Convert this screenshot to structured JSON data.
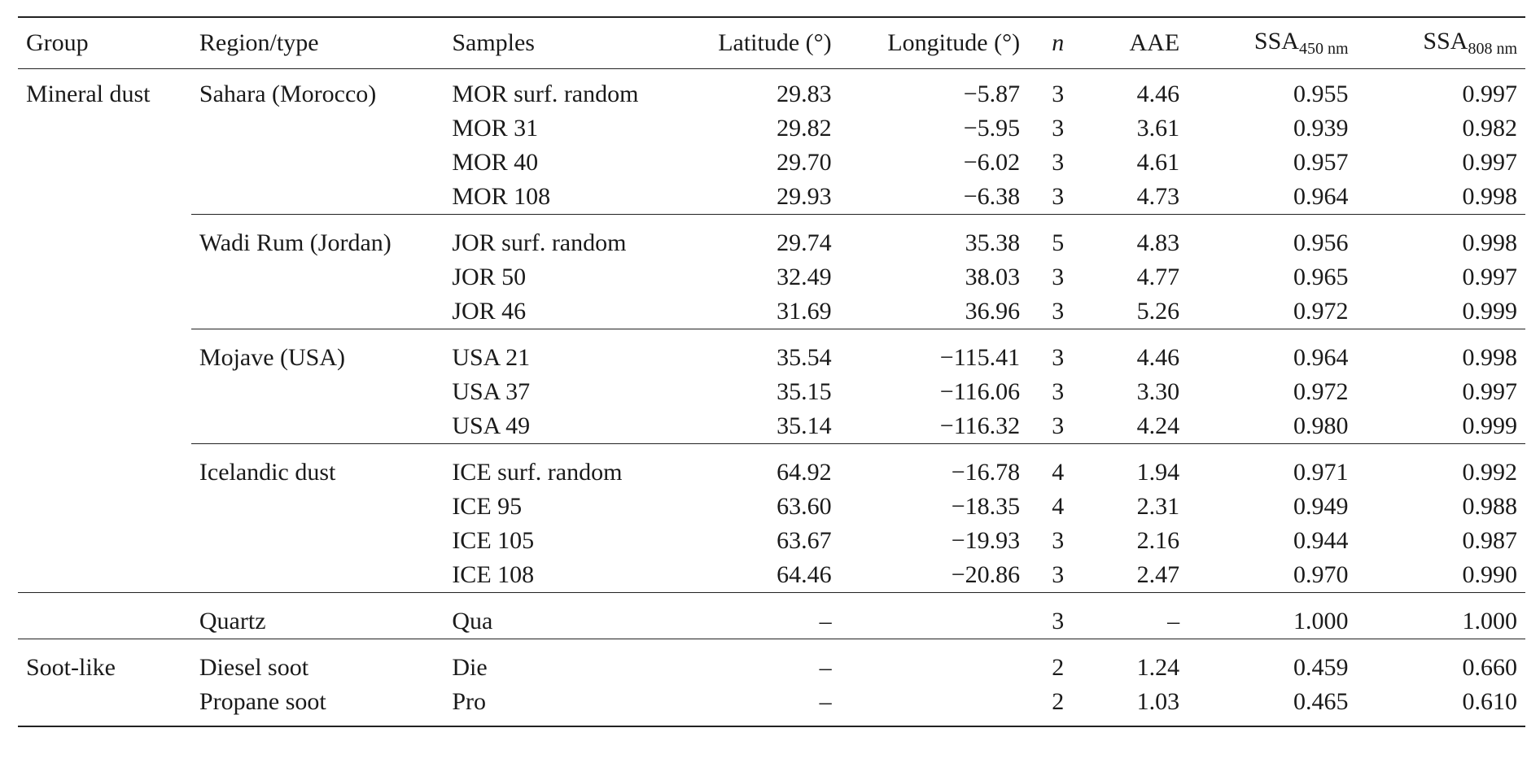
{
  "headers": {
    "group": "Group",
    "region": "Region/type",
    "samples": "Samples",
    "lat": "Latitude (°)",
    "lon": "Longitude (°)",
    "n": "n",
    "aae": "AAE",
    "ssa450_main": "SSA",
    "ssa450_sub": "450 nm",
    "ssa808_main": "SSA",
    "ssa808_sub": "808 nm"
  },
  "rows": [
    {
      "group": "Mineral dust",
      "region": "Sahara (Morocco)",
      "sample": "MOR surf. random",
      "lat": "29.83",
      "lon": "−5.87",
      "n": "3",
      "aae": "4.46",
      "ssa450": "0.955",
      "ssa808": "0.997"
    },
    {
      "group": "",
      "region": "",
      "sample": "MOR 31",
      "lat": "29.82",
      "lon": "−5.95",
      "n": "3",
      "aae": "3.61",
      "ssa450": "0.939",
      "ssa808": "0.982"
    },
    {
      "group": "",
      "region": "",
      "sample": "MOR 40",
      "lat": "29.70",
      "lon": "−6.02",
      "n": "3",
      "aae": "4.61",
      "ssa450": "0.957",
      "ssa808": "0.997"
    },
    {
      "group": "",
      "region": "",
      "sample": "MOR 108",
      "lat": "29.93",
      "lon": "−6.38",
      "n": "3",
      "aae": "4.73",
      "ssa450": "0.964",
      "ssa808": "0.998"
    },
    {
      "group": "",
      "region": "Wadi Rum (Jordan)",
      "sample": "JOR surf. random",
      "lat": "29.74",
      "lon": "35.38",
      "n": "5",
      "aae": "4.83",
      "ssa450": "0.956",
      "ssa808": "0.998"
    },
    {
      "group": "",
      "region": "",
      "sample": "JOR 50",
      "lat": "32.49",
      "lon": "38.03",
      "n": "3",
      "aae": "4.77",
      "ssa450": "0.965",
      "ssa808": "0.997"
    },
    {
      "group": "",
      "region": "",
      "sample": "JOR 46",
      "lat": "31.69",
      "lon": "36.96",
      "n": "3",
      "aae": "5.26",
      "ssa450": "0.972",
      "ssa808": "0.999"
    },
    {
      "group": "",
      "region": "Mojave (USA)",
      "sample": "USA 21",
      "lat": "35.54",
      "lon": "−115.41",
      "n": "3",
      "aae": "4.46",
      "ssa450": "0.964",
      "ssa808": "0.998"
    },
    {
      "group": "",
      "region": "",
      "sample": "USA 37",
      "lat": "35.15",
      "lon": "−116.06",
      "n": "3",
      "aae": "3.30",
      "ssa450": "0.972",
      "ssa808": "0.997"
    },
    {
      "group": "",
      "region": "",
      "sample": "USA 49",
      "lat": "35.14",
      "lon": "−116.32",
      "n": "3",
      "aae": "4.24",
      "ssa450": "0.980",
      "ssa808": "0.999"
    },
    {
      "group": "",
      "region": "Icelandic dust",
      "sample": "ICE surf. random",
      "lat": "64.92",
      "lon": "−16.78",
      "n": "4",
      "aae": "1.94",
      "ssa450": "0.971",
      "ssa808": "0.992"
    },
    {
      "group": "",
      "region": "",
      "sample": "ICE 95",
      "lat": "63.60",
      "lon": "−18.35",
      "n": "4",
      "aae": "2.31",
      "ssa450": "0.949",
      "ssa808": "0.988"
    },
    {
      "group": "",
      "region": "",
      "sample": "ICE 105",
      "lat": "63.67",
      "lon": "−19.93",
      "n": "3",
      "aae": "2.16",
      "ssa450": "0.944",
      "ssa808": "0.987"
    },
    {
      "group": "",
      "region": "",
      "sample": "ICE 108",
      "lat": "64.46",
      "lon": "−20.86",
      "n": "3",
      "aae": "2.47",
      "ssa450": "0.970",
      "ssa808": "0.990"
    },
    {
      "group": "",
      "region": "Quartz",
      "sample": "Qua",
      "lat": "–",
      "lon": "",
      "n": "3",
      "aae": "–",
      "ssa450": "1.000",
      "ssa808": "1.000"
    },
    {
      "group": "Soot-like",
      "region": "Diesel soot",
      "sample": "Die",
      "lat": "–",
      "lon": "",
      "n": "2",
      "aae": "1.24",
      "ssa450": "0.459",
      "ssa808": "0.660"
    },
    {
      "group": "",
      "region": "Propane soot",
      "sample": "Pro",
      "lat": "–",
      "lon": "",
      "n": "2",
      "aae": "1.03",
      "ssa450": "0.465",
      "ssa808": "0.610"
    }
  ]
}
